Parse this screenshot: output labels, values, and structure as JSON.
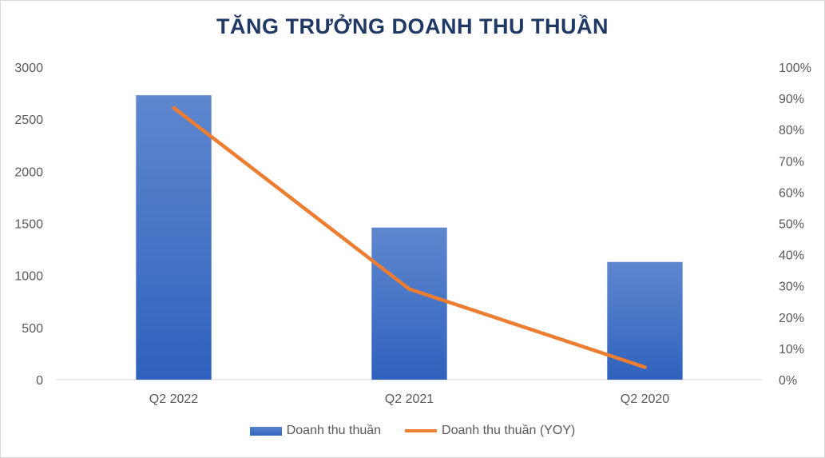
{
  "chart_data": {
    "type": "bar",
    "title": "TĂNG TRƯỞNG DOANH THU THUẦN",
    "categories": [
      "Q2 2022",
      "Q2 2021",
      "Q2 2020"
    ],
    "series": [
      {
        "name": "Doanh thu thuần",
        "type": "bar",
        "axis": "left",
        "values": [
          2730,
          1460,
          1130
        ],
        "color": "#3a6bc4"
      },
      {
        "name": "Doanh thu thuần (YOY)",
        "type": "line",
        "axis": "right",
        "values": [
          0.87,
          0.29,
          0.04
        ],
        "color": "#ed7d31"
      }
    ],
    "y_left": {
      "ylim": [
        0,
        3000
      ],
      "ticks": [
        "0",
        "500",
        "1000",
        "1500",
        "2000",
        "2500",
        "3000"
      ]
    },
    "y_right": {
      "ylim": [
        0,
        1
      ],
      "ticks": [
        "0%",
        "10%",
        "20%",
        "30%",
        "40%",
        "50%",
        "60%",
        "70%",
        "80%",
        "90%",
        "100%"
      ]
    },
    "grid": false,
    "legend": "bottom"
  }
}
